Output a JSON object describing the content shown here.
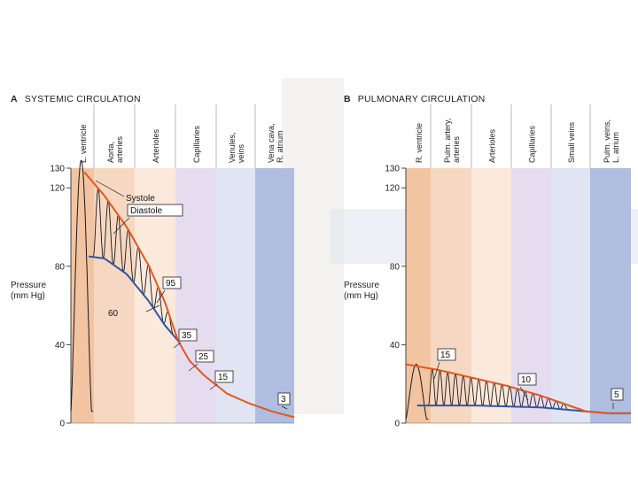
{
  "chart_data": [
    {
      "type": "line",
      "id": "systemic",
      "panel_letter": "A",
      "title": "SYSTEMIC CIRCULATION",
      "ylabel": "Pressure\n(mm Hg)",
      "ylim": [
        0,
        130
      ],
      "yticks": [
        0,
        40,
        80,
        120,
        130
      ],
      "grid": false,
      "regions": [
        {
          "label": "L. ventricle",
          "color": "#f2c4a2"
        },
        {
          "label": "Aorta,\narteries",
          "color": "#f6d8c2"
        },
        {
          "label": "Arterioles",
          "color": "#fbe9dc"
        },
        {
          "label": "Capillaries",
          "color": "#e6dcef"
        },
        {
          "label": "Venules,\nveins",
          "color": "#e1e4f2"
        },
        {
          "label": "Vena cava,\nR. atrium",
          "color": "#aebde0"
        }
      ],
      "series": [
        {
          "name": "Systole",
          "color": "#e2581e",
          "x": [
            0.06,
            0.15,
            0.25,
            0.35,
            0.42,
            0.48,
            0.53,
            0.6,
            0.7,
            0.8,
            0.9,
            1.0
          ],
          "values": [
            128,
            116,
            100,
            80,
            62,
            42,
            32,
            24,
            15,
            10,
            6,
            3
          ]
        },
        {
          "name": "Diastole",
          "color": "#2e56a6",
          "x": [
            0.08,
            0.15,
            0.25,
            0.35,
            0.42,
            0.48
          ],
          "values": [
            85,
            84,
            76,
            62,
            50,
            42
          ]
        }
      ],
      "annotations": [
        "Systole",
        "Diastole",
        "95",
        "60",
        "35",
        "25",
        "15",
        "3"
      ]
    },
    {
      "type": "line",
      "id": "pulmonary",
      "panel_letter": "B",
      "title": "PULMONARY CIRCULATION",
      "ylabel": "Pressure\n(mm Hg)",
      "ylim": [
        0,
        130
      ],
      "yticks": [
        0,
        40,
        80,
        120,
        130
      ],
      "grid": false,
      "regions": [
        {
          "label": "R. ventricle",
          "color": "#f2c4a2"
        },
        {
          "label": "Pulm. artery,\narteries",
          "color": "#f6d8c2"
        },
        {
          "label": "Arterioles",
          "color": "#fbe9dc"
        },
        {
          "label": "Capillaries",
          "color": "#e6dcef"
        },
        {
          "label": "Small veins",
          "color": "#e1e4f2"
        },
        {
          "label": "Pulm. veins,\nL. atrium",
          "color": "#aebde0"
        }
      ],
      "series": [
        {
          "name": "Systole",
          "color": "#e2581e",
          "x": [
            0.0,
            0.15,
            0.3,
            0.45,
            0.6,
            0.7,
            0.8,
            0.9,
            1.0
          ],
          "values": [
            30,
            27,
            23,
            19,
            14,
            10,
            6,
            5,
            5
          ]
        },
        {
          "name": "Diastole",
          "color": "#2e56a6",
          "x": [
            0.05,
            0.3,
            0.6,
            0.8,
            0.9,
            1.0
          ],
          "values": [
            9,
            9,
            8,
            6,
            5,
            5
          ]
        }
      ],
      "annotations": [
        "15",
        "10",
        "5"
      ]
    }
  ]
}
